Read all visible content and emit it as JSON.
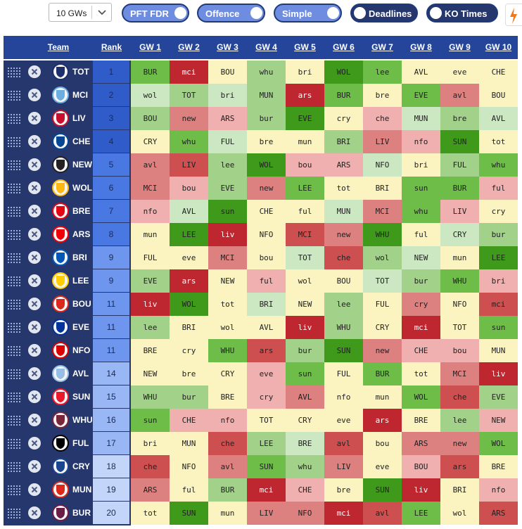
{
  "toolbar": {
    "gw_select": {
      "value": "10 GWs"
    },
    "toggles": [
      {
        "label": "PFT FDR",
        "on": true
      },
      {
        "label": "Offence",
        "on": true
      },
      {
        "label": "Simple",
        "on": true
      },
      {
        "label": "Deadlines",
        "on": false
      },
      {
        "label": "KO Times",
        "on": false
      }
    ],
    "bolt_icon": "lightning-icon"
  },
  "headers": {
    "team": "Team",
    "rank": "Rank",
    "gws": [
      "GW 1",
      "GW 2",
      "GW 3",
      "GW 4",
      "GW 5",
      "GW 6",
      "GW 7",
      "GW 8",
      "GW 9",
      "GW 10"
    ]
  },
  "colors": {
    "g2": "#3f9a1c",
    "g1": "#6ebd48",
    "g0": "#a2d18a",
    "gl": "#cce8c2",
    "y": "#fbf4c0",
    "pl": "#f0b0b0",
    "p": "#dc8080",
    "r": "#cd4f4f",
    "rd": "#bf2730",
    "rank_colors": [
      "#2f5cc9",
      "#4a78e2",
      "#6f96ee",
      "#98b7f4",
      "#c3d6fa"
    ]
  },
  "teams": [
    {
      "code": "TOT",
      "rank": "1",
      "crest": "#1c2f6b",
      "fixtures": [
        [
          "BUR",
          "g1"
        ],
        [
          "mci",
          "rd"
        ],
        [
          "BOU",
          "y"
        ],
        [
          "whu",
          "g0"
        ],
        [
          "bri",
          "y"
        ],
        [
          "WOL",
          "g2"
        ],
        [
          "lee",
          "g1"
        ],
        [
          "AVL",
          "y"
        ],
        [
          "eve",
          "y"
        ],
        [
          "CHE",
          "y"
        ]
      ]
    },
    {
      "code": "MCI",
      "rank": "2",
      "crest": "#6caee0",
      "fixtures": [
        [
          "wol",
          "gl"
        ],
        [
          "TOT",
          "g0"
        ],
        [
          "bri",
          "gl"
        ],
        [
          "MUN",
          "g0"
        ],
        [
          "ars",
          "rd"
        ],
        [
          "BUR",
          "g1"
        ],
        [
          "bre",
          "y"
        ],
        [
          "EVE",
          "g1"
        ],
        [
          "avl",
          "p"
        ],
        [
          "BOU",
          "y"
        ]
      ]
    },
    {
      "code": "LIV",
      "rank": "3",
      "crest": "#c8102e",
      "fixtures": [
        [
          "BOU",
          "g0"
        ],
        [
          "new",
          "p"
        ],
        [
          "ARS",
          "pl"
        ],
        [
          "bur",
          "g0"
        ],
        [
          "EVE",
          "g2"
        ],
        [
          "cry",
          "y"
        ],
        [
          "che",
          "pl"
        ],
        [
          "MUN",
          "gl"
        ],
        [
          "bre",
          "g0"
        ],
        [
          "AVL",
          "gl"
        ]
      ]
    },
    {
      "code": "CHE",
      "rank": "4",
      "crest": "#034694",
      "fixtures": [
        [
          "CRY",
          "y"
        ],
        [
          "whu",
          "g1"
        ],
        [
          "FUL",
          "gl"
        ],
        [
          "bre",
          "y"
        ],
        [
          "mun",
          "y"
        ],
        [
          "BRI",
          "g0"
        ],
        [
          "LIV",
          "p"
        ],
        [
          "nfo",
          "pl"
        ],
        [
          "SUN",
          "g2"
        ],
        [
          "tot",
          "y"
        ]
      ]
    },
    {
      "code": "NEW",
      "rank": "5",
      "crest": "#241f20",
      "fixtures": [
        [
          "avl",
          "p"
        ],
        [
          "LIV",
          "r"
        ],
        [
          "lee",
          "g0"
        ],
        [
          "WOL",
          "g2"
        ],
        [
          "bou",
          "pl"
        ],
        [
          "ARS",
          "pl"
        ],
        [
          "NFO",
          "gl"
        ],
        [
          "bri",
          "y"
        ],
        [
          "FUL",
          "g0"
        ],
        [
          "whu",
          "g1"
        ]
      ]
    },
    {
      "code": "WOL",
      "rank": "6",
      "crest": "#fdb913",
      "fixtures": [
        [
          "MCI",
          "p"
        ],
        [
          "bou",
          "pl"
        ],
        [
          "EVE",
          "g0"
        ],
        [
          "new",
          "p"
        ],
        [
          "LEE",
          "g1"
        ],
        [
          "tot",
          "y"
        ],
        [
          "BRI",
          "y"
        ],
        [
          "sun",
          "g1"
        ],
        [
          "BUR",
          "g1"
        ],
        [
          "ful",
          "pl"
        ]
      ]
    },
    {
      "code": "BRE",
      "rank": "7",
      "crest": "#e30613",
      "fixtures": [
        [
          "nfo",
          "pl"
        ],
        [
          "AVL",
          "gl"
        ],
        [
          "sun",
          "g2"
        ],
        [
          "CHE",
          "y"
        ],
        [
          "ful",
          "y"
        ],
        [
          "MUN",
          "gl"
        ],
        [
          "MCI",
          "p"
        ],
        [
          "whu",
          "g1"
        ],
        [
          "LIV",
          "pl"
        ],
        [
          "cry",
          "y"
        ]
      ]
    },
    {
      "code": "ARS",
      "rank": "8",
      "crest": "#ef0107",
      "fixtures": [
        [
          "mun",
          "y"
        ],
        [
          "LEE",
          "g2"
        ],
        [
          "liv",
          "rd"
        ],
        [
          "NFO",
          "y"
        ],
        [
          "MCI",
          "r"
        ],
        [
          "new",
          "p"
        ],
        [
          "WHU",
          "g2"
        ],
        [
          "ful",
          "y"
        ],
        [
          "CRY",
          "gl"
        ],
        [
          "bur",
          "g0"
        ]
      ]
    },
    {
      "code": "BRI",
      "rank": "9",
      "crest": "#0057b8",
      "fixtures": [
        [
          "FUL",
          "y"
        ],
        [
          "eve",
          "y"
        ],
        [
          "MCI",
          "p"
        ],
        [
          "bou",
          "y"
        ],
        [
          "TOT",
          "gl"
        ],
        [
          "che",
          "r"
        ],
        [
          "wol",
          "g0"
        ],
        [
          "NEW",
          "gl"
        ],
        [
          "mun",
          "y"
        ],
        [
          "LEE",
          "g2"
        ]
      ]
    },
    {
      "code": "LEE",
      "rank": "9",
      "crest": "#ffcd00",
      "fixtures": [
        [
          "EVE",
          "g0"
        ],
        [
          "ars",
          "rd"
        ],
        [
          "NEW",
          "y"
        ],
        [
          "ful",
          "pl"
        ],
        [
          "wol",
          "y"
        ],
        [
          "BOU",
          "y"
        ],
        [
          "TOT",
          "gl"
        ],
        [
          "bur",
          "g0"
        ],
        [
          "WHU",
          "g1"
        ],
        [
          "bri",
          "pl"
        ]
      ]
    },
    {
      "code": "BOU",
      "rank": "11",
      "crest": "#da291c",
      "fixtures": [
        [
          "liv",
          "rd"
        ],
        [
          "WOL",
          "g2"
        ],
        [
          "tot",
          "y"
        ],
        [
          "BRI",
          "gl"
        ],
        [
          "NEW",
          "y"
        ],
        [
          "lee",
          "g0"
        ],
        [
          "FUL",
          "y"
        ],
        [
          "cry",
          "p"
        ],
        [
          "NFO",
          "y"
        ],
        [
          "mci",
          "r"
        ]
      ]
    },
    {
      "code": "EVE",
      "rank": "11",
      "crest": "#003399",
      "fixtures": [
        [
          "lee",
          "g0"
        ],
        [
          "BRI",
          "y"
        ],
        [
          "wol",
          "y"
        ],
        [
          "AVL",
          "y"
        ],
        [
          "liv",
          "rd"
        ],
        [
          "WHU",
          "g0"
        ],
        [
          "CRY",
          "y"
        ],
        [
          "mci",
          "rd"
        ],
        [
          "TOT",
          "y"
        ],
        [
          "sun",
          "g1"
        ]
      ]
    },
    {
      "code": "NFO",
      "rank": "11",
      "crest": "#dd0000",
      "fixtures": [
        [
          "BRE",
          "y"
        ],
        [
          "cry",
          "y"
        ],
        [
          "WHU",
          "g1"
        ],
        [
          "ars",
          "r"
        ],
        [
          "bur",
          "g0"
        ],
        [
          "SUN",
          "g2"
        ],
        [
          "new",
          "p"
        ],
        [
          "CHE",
          "pl"
        ],
        [
          "bou",
          "pl"
        ],
        [
          "MUN",
          "y"
        ]
      ]
    },
    {
      "code": "AVL",
      "rank": "14",
      "crest": "#95bfe5",
      "fixtures": [
        [
          "NEW",
          "y"
        ],
        [
          "bre",
          "y"
        ],
        [
          "CRY",
          "y"
        ],
        [
          "eve",
          "pl"
        ],
        [
          "sun",
          "g1"
        ],
        [
          "FUL",
          "y"
        ],
        [
          "BUR",
          "g1"
        ],
        [
          "tot",
          "y"
        ],
        [
          "MCI",
          "p"
        ],
        [
          "liv",
          "rd"
        ]
      ]
    },
    {
      "code": "SUN",
      "rank": "15",
      "crest": "#eb172b",
      "fixtures": [
        [
          "WHU",
          "g0"
        ],
        [
          "bur",
          "g0"
        ],
        [
          "BRE",
          "y"
        ],
        [
          "cry",
          "pl"
        ],
        [
          "AVL",
          "p"
        ],
        [
          "nfo",
          "y"
        ],
        [
          "mun",
          "y"
        ],
        [
          "WOL",
          "g1"
        ],
        [
          "che",
          "r"
        ],
        [
          "EVE",
          "g0"
        ]
      ]
    },
    {
      "code": "WHU",
      "rank": "16",
      "crest": "#7a263a",
      "fixtures": [
        [
          "sun",
          "g1"
        ],
        [
          "CHE",
          "pl"
        ],
        [
          "nfo",
          "pl"
        ],
        [
          "TOT",
          "y"
        ],
        [
          "CRY",
          "y"
        ],
        [
          "eve",
          "y"
        ],
        [
          "ars",
          "rd"
        ],
        [
          "BRE",
          "y"
        ],
        [
          "lee",
          "g0"
        ],
        [
          "NEW",
          "pl"
        ]
      ]
    },
    {
      "code": "FUL",
      "rank": "17",
      "crest": "#000000",
      "fixtures": [
        [
          "bri",
          "y"
        ],
        [
          "MUN",
          "y"
        ],
        [
          "che",
          "r"
        ],
        [
          "LEE",
          "g0"
        ],
        [
          "BRE",
          "gl"
        ],
        [
          "avl",
          "r"
        ],
        [
          "bou",
          "y"
        ],
        [
          "ARS",
          "p"
        ],
        [
          "new",
          "p"
        ],
        [
          "WOL",
          "g1"
        ]
      ]
    },
    {
      "code": "CRY",
      "rank": "18",
      "crest": "#1b458f",
      "fixtures": [
        [
          "che",
          "r"
        ],
        [
          "NFO",
          "y"
        ],
        [
          "avl",
          "p"
        ],
        [
          "SUN",
          "g1"
        ],
        [
          "whu",
          "g0"
        ],
        [
          "LIV",
          "p"
        ],
        [
          "eve",
          "y"
        ],
        [
          "BOU",
          "pl"
        ],
        [
          "ars",
          "r"
        ],
        [
          "BRE",
          "y"
        ]
      ]
    },
    {
      "code": "MUN",
      "rank": "19",
      "crest": "#da291c",
      "fixtures": [
        [
          "ARS",
          "p"
        ],
        [
          "ful",
          "y"
        ],
        [
          "BUR",
          "g0"
        ],
        [
          "mci",
          "rd"
        ],
        [
          "CHE",
          "pl"
        ],
        [
          "bre",
          "y"
        ],
        [
          "SUN",
          "g2"
        ],
        [
          "liv",
          "rd"
        ],
        [
          "BRI",
          "y"
        ],
        [
          "nfo",
          "pl"
        ]
      ]
    },
    {
      "code": "BUR",
      "rank": "20",
      "crest": "#6c1d45",
      "fixtures": [
        [
          "tot",
          "y"
        ],
        [
          "SUN",
          "g2"
        ],
        [
          "mun",
          "y"
        ],
        [
          "LIV",
          "p"
        ],
        [
          "NFO",
          "p"
        ],
        [
          "mci",
          "rd"
        ],
        [
          "avl",
          "r"
        ],
        [
          "LEE",
          "g1"
        ],
        [
          "wol",
          "y"
        ],
        [
          "ARS",
          "r"
        ]
      ]
    }
  ]
}
